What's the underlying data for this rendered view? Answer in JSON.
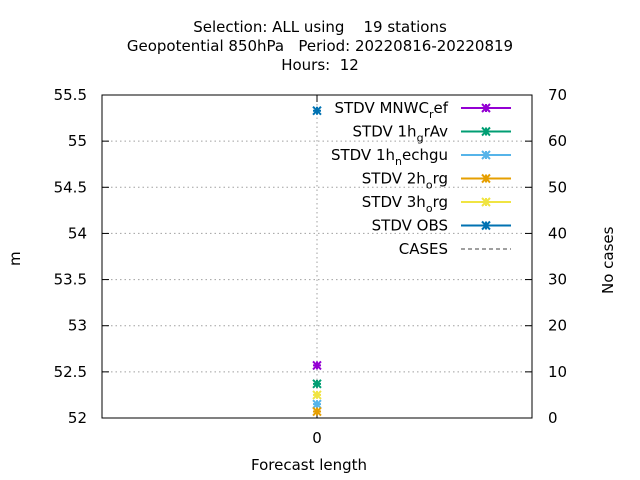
{
  "chart_data": {
    "type": "line",
    "title_lines": [
      "Selection: ALL using    19 stations",
      "Geopotential 850hPa   Period: 20220816-20220819",
      "Hours:  12"
    ],
    "xlabel": "Forecast length",
    "ylabel": "m",
    "y2label": "No cases",
    "x_ticks": [
      "0"
    ],
    "y_ticks": [
      "52",
      "52.5",
      "53",
      "53.5",
      "54",
      "54.5",
      "55",
      "55.5"
    ],
    "y2_ticks": [
      "0",
      "10",
      "20",
      "30",
      "40",
      "50",
      "60",
      "70"
    ],
    "ylim": [
      52,
      55.5
    ],
    "y2lim": [
      0,
      70
    ],
    "grid": true,
    "legend_position": "top-right",
    "series": [
      {
        "name": "STDV MNWC",
        "name_sub": "r",
        "name_rest": "ef",
        "color": "#9400d3",
        "x": [
          0
        ],
        "y": [
          52.57
        ],
        "style": "line-point"
      },
      {
        "name": "STDV 1h",
        "name_sub": "g",
        "name_rest": "rAv",
        "color": "#009e73",
        "x": [
          0
        ],
        "y": [
          52.37
        ],
        "style": "line-point"
      },
      {
        "name": "STDV 1h",
        "name_sub": "n",
        "name_rest": "echgu",
        "color": "#56b4e9",
        "x": [
          0
        ],
        "y": [
          52.15
        ],
        "style": "line-point"
      },
      {
        "name": "STDV 2h",
        "name_sub": "o",
        "name_rest": "rg",
        "color": "#e69f00",
        "x": [
          0
        ],
        "y": [
          52.07
        ],
        "style": "line-point"
      },
      {
        "name": "STDV 3h",
        "name_sub": "o",
        "name_rest": "rg",
        "color": "#f0e442",
        "x": [
          0
        ],
        "y": [
          52.25
        ],
        "style": "line-point"
      },
      {
        "name": "STDV OBS",
        "name_sub": "",
        "name_rest": "",
        "color": "#0072b2",
        "x": [
          0
        ],
        "y": [
          55.33
        ],
        "style": "line-point"
      },
      {
        "name": "CASES",
        "name_sub": "",
        "name_rest": "",
        "color": "#808080",
        "x": [
          0
        ],
        "y": [
          0
        ],
        "style": "dashed",
        "axis": "y2"
      }
    ]
  }
}
